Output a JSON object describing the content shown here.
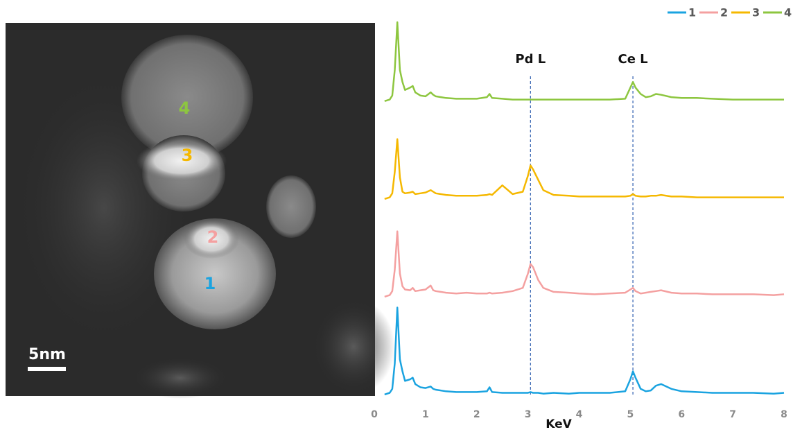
{
  "image": {
    "labels": [
      {
        "text": "4",
        "color": "#8dc63f"
      },
      {
        "text": "3",
        "color": "#f5b800"
      },
      {
        "text": "2",
        "color": "#f4a0a0"
      },
      {
        "text": "1",
        "color": "#1aa3e0"
      }
    ],
    "scale_bar": "5nm"
  },
  "chart_data": {
    "type": "line",
    "x_label": "KeV",
    "x": [
      0.2,
      0.3,
      0.35,
      0.4,
      0.45,
      0.5,
      0.55,
      0.6,
      0.7,
      0.75,
      0.8,
      0.9,
      1.0,
      1.1,
      1.15,
      1.2,
      1.4,
      1.6,
      1.8,
      2.0,
      2.2,
      2.25,
      2.3,
      2.5,
      2.7,
      2.9,
      3.0,
      3.05,
      3.1,
      3.2,
      3.3,
      3.5,
      3.8,
      4.0,
      4.3,
      4.6,
      4.9,
      5.0,
      5.05,
      5.1,
      5.2,
      5.3,
      5.4,
      5.5,
      5.6,
      5.8,
      6.0,
      6.3,
      6.6,
      7.0,
      7.4,
      7.8,
      8.0
    ],
    "xlim": [
      0,
      8
    ],
    "xticks": [
      0,
      1,
      2,
      3,
      4,
      5,
      6,
      7,
      8
    ],
    "ylim": [
      0,
      120
    ],
    "legend": "top-right",
    "series": [
      {
        "name": "1",
        "color": "#1aa3e0",
        "values": [
          1,
          3,
          8,
          40,
          110,
          45,
          30,
          18,
          20,
          22,
          14,
          10,
          9,
          11,
          8,
          7,
          5,
          4,
          4,
          4,
          5,
          10,
          4,
          3,
          3,
          3,
          3,
          4,
          3,
          3,
          2,
          3,
          2,
          3,
          3,
          3,
          5,
          20,
          30,
          22,
          8,
          5,
          6,
          12,
          14,
          8,
          5,
          4,
          3,
          3,
          3,
          2,
          3
        ]
      },
      {
        "name": "2",
        "color": "#f4a0a0",
        "values": [
          1,
          3,
          8,
          35,
          83,
          30,
          14,
          10,
          9,
          12,
          8,
          9,
          10,
          15,
          9,
          8,
          6,
          5,
          6,
          5,
          5,
          6,
          5,
          6,
          8,
          12,
          30,
          42,
          38,
          22,
          12,
          7,
          6,
          5,
          4,
          5,
          6,
          10,
          12,
          8,
          5,
          6,
          7,
          8,
          9,
          6,
          5,
          5,
          4,
          4,
          4,
          3,
          4
        ]
      },
      {
        "name": "3",
        "color": "#f5b800",
        "values": [
          1,
          3,
          8,
          35,
          76,
          28,
          10,
          8,
          9,
          10,
          7,
          8,
          9,
          12,
          10,
          8,
          6,
          5,
          5,
          5,
          6,
          7,
          6,
          18,
          7,
          10,
          30,
          43,
          38,
          25,
          12,
          6,
          5,
          4,
          4,
          4,
          4,
          5,
          7,
          5,
          4,
          4,
          5,
          5,
          6,
          4,
          4,
          3,
          3,
          3,
          3,
          3,
          3
        ]
      },
      {
        "name": "4",
        "color": "#8dc63f",
        "values": [
          1,
          3,
          8,
          40,
          100,
          40,
          25,
          15,
          18,
          20,
          12,
          8,
          7,
          12,
          9,
          7,
          5,
          4,
          4,
          4,
          6,
          10,
          5,
          4,
          3,
          3,
          3,
          3,
          3,
          3,
          3,
          3,
          3,
          3,
          3,
          3,
          4,
          18,
          25,
          18,
          10,
          6,
          7,
          10,
          9,
          6,
          5,
          5,
          4,
          3,
          3,
          3,
          3
        ]
      }
    ],
    "annotations": [
      {
        "text": "Pd L",
        "x": 3.05
      },
      {
        "text": "Ce L",
        "x": 5.05
      }
    ]
  }
}
